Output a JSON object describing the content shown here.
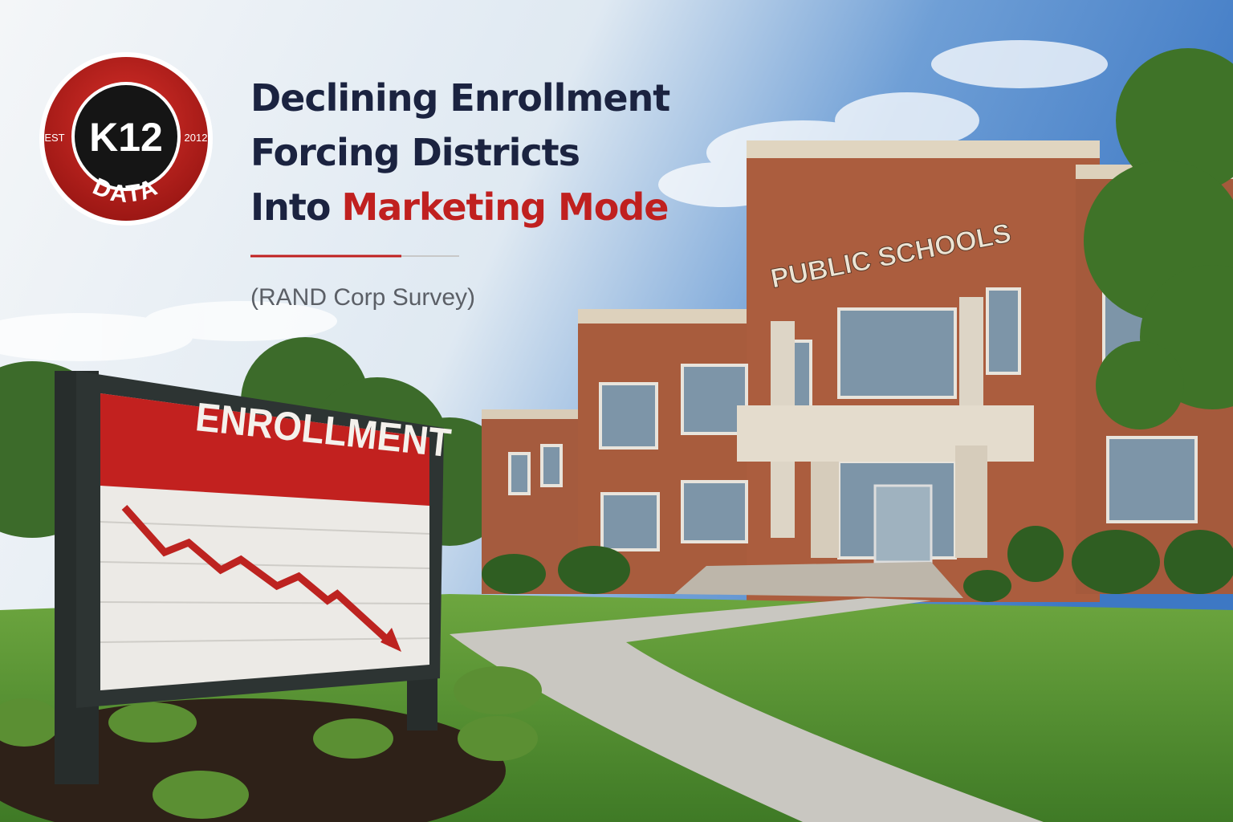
{
  "logo": {
    "est": "EST",
    "year": "2012",
    "name": "K12",
    "word": "DATA"
  },
  "headline": {
    "line1": "Declining Enrollment",
    "line2": "Forcing Districts",
    "line3_prefix": "Into",
    "line3_highlight": "Marketing Mode"
  },
  "source": "(RAND Corp Survey)",
  "sign": {
    "title": "ENROLLMENT"
  },
  "building": {
    "label": "PUBLIC SCHOOLS"
  }
}
